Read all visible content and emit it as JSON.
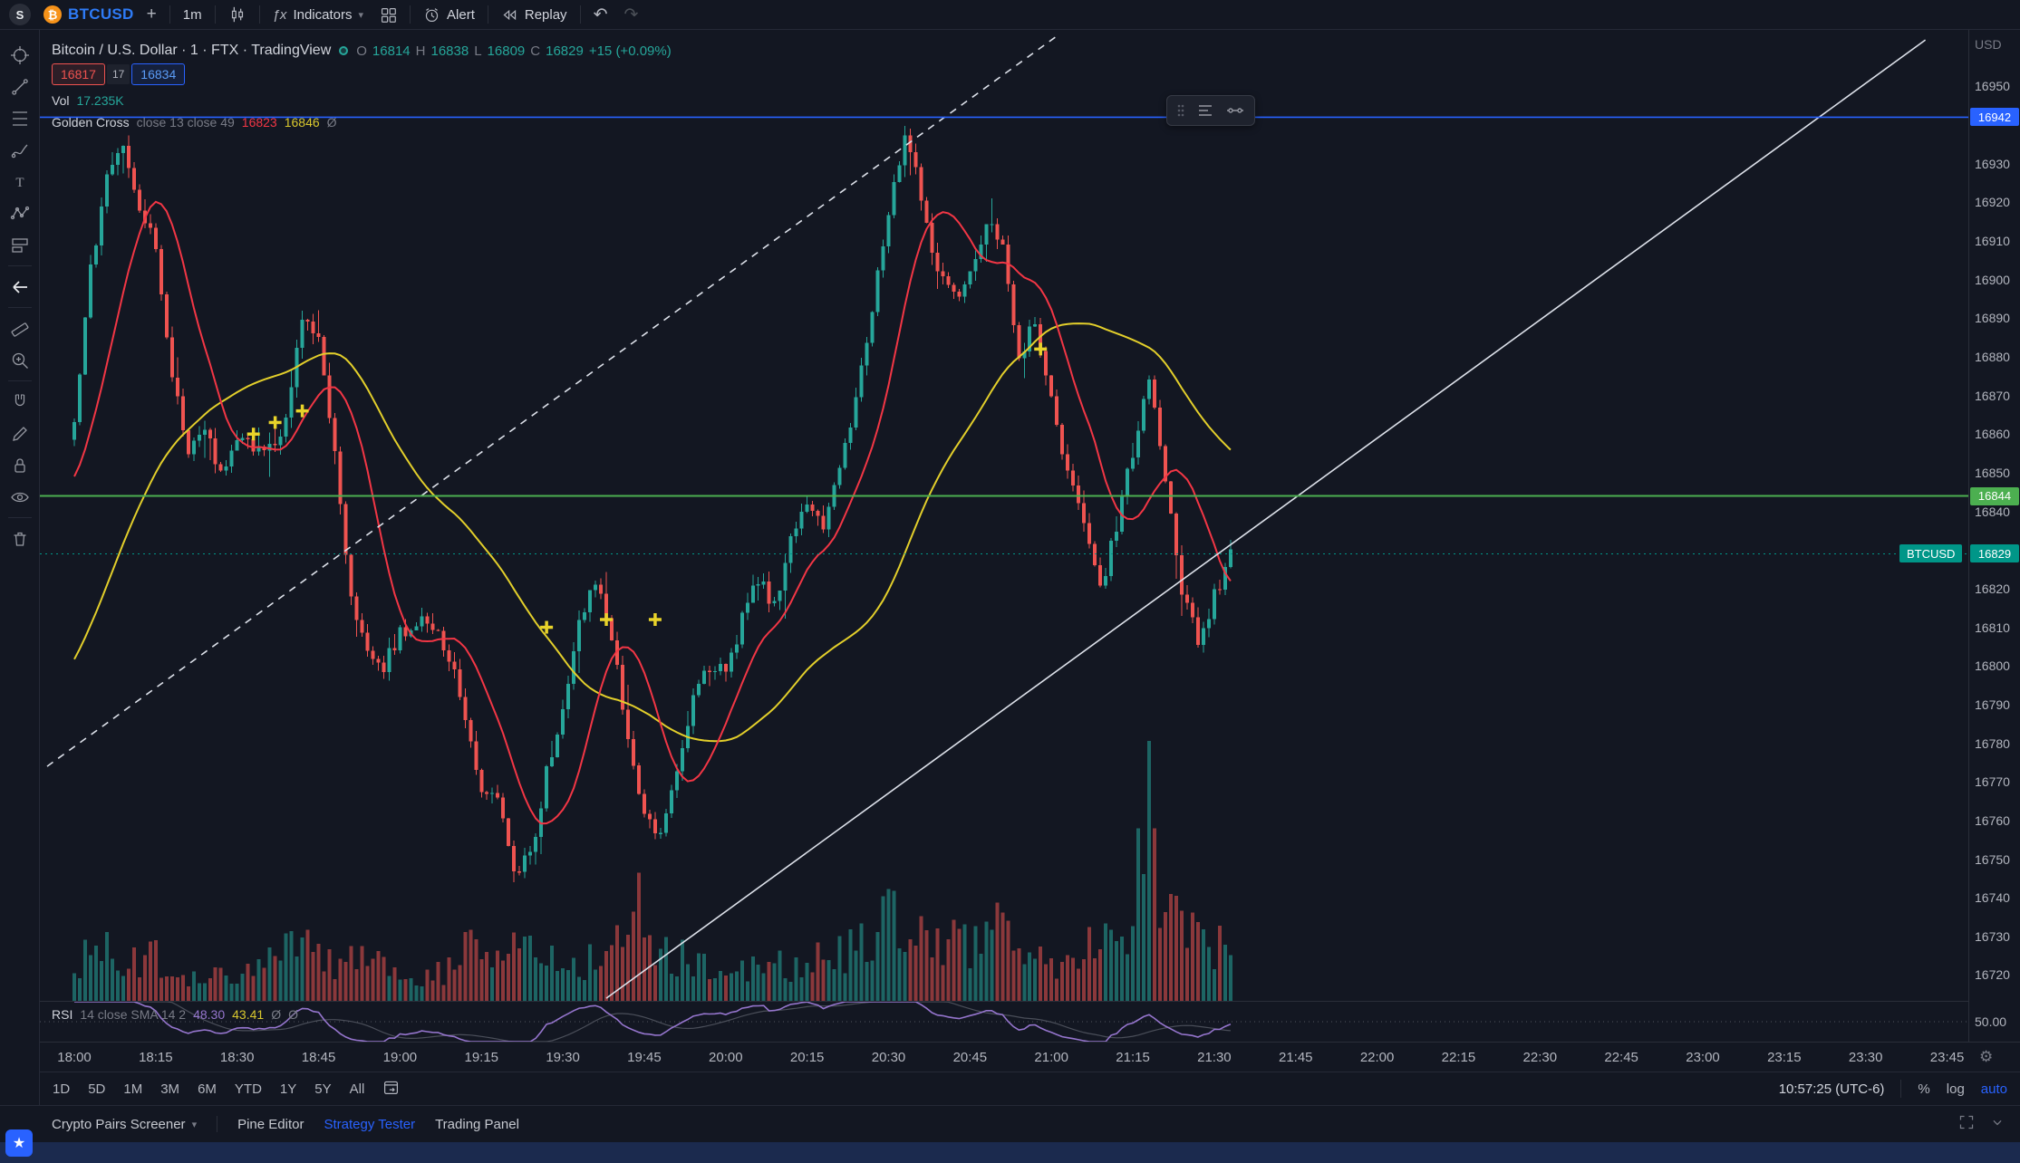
{
  "topbar": {
    "avatar_letter": "S",
    "symbol": "BTCUSD",
    "interval": "1m",
    "indicators_label": "Indicators",
    "alert_label": "Alert",
    "replay_label": "Replay"
  },
  "icons": {
    "plus": "+",
    "chevron_down": "▾",
    "undo": "↶",
    "redo": "↷",
    "gear": "⚙",
    "star": "★",
    "fx": "ƒx",
    "slash": "Ø"
  },
  "trade_buttons": {
    "sell": "16817",
    "spread": "17",
    "buy": "16834"
  },
  "legend": {
    "title": "Bitcoin / U.S. Dollar · 1 · FTX · TradingView",
    "ohlc": {
      "o_key": "O",
      "o": "16814",
      "h_key": "H",
      "h": "16838",
      "l_key": "L",
      "l": "16809",
      "c_key": "C",
      "c": "16829",
      "change": "+15 (+0.09%)"
    },
    "volume_label": "Vol",
    "volume_value": "17.235K",
    "indicator": {
      "name": "Golden Cross",
      "params": "close 13 close 49",
      "v1": "16823",
      "v2": "16846"
    }
  },
  "rsi_legend": {
    "name": "RSI",
    "params": "14 close SMA 14 2",
    "v1": "48.30",
    "v2": "43.41"
  },
  "time_axis": [
    "18:00",
    "18:15",
    "18:30",
    "18:45",
    "19:00",
    "19:15",
    "19:30",
    "19:45",
    "20:00",
    "20:15",
    "20:30",
    "20:45",
    "21:00",
    "21:15",
    "21:30",
    "21:45",
    "22:00",
    "22:15",
    "22:30",
    "22:45",
    "23:00",
    "23:15",
    "23:30",
    "23:45"
  ],
  "price_axis": {
    "currency": "USD",
    "rsi_tick": "50.00",
    "ticks": [
      16950,
      16930,
      16920,
      16910,
      16900,
      16890,
      16880,
      16870,
      16860,
      16850,
      16840,
      16820,
      16810,
      16800,
      16790,
      16780,
      16770,
      16760,
      16750,
      16740,
      16730,
      16720
    ],
    "tags": [
      {
        "price": 16942,
        "value": "16942",
        "color": "#2962ff"
      },
      {
        "price": 16844,
        "value": "16844",
        "color": "#4caf50"
      },
      {
        "price": 16829,
        "value": "16829",
        "color": "#009688"
      }
    ],
    "symbol_tag": "BTCUSD"
  },
  "bottom_toolbar": {
    "ranges": [
      "1D",
      "5D",
      "1M",
      "3M",
      "6M",
      "YTD",
      "1Y",
      "5Y",
      "All"
    ],
    "clock": "10:57:25 (UTC-6)",
    "percent": "%",
    "log_label": "log",
    "auto_label": "auto"
  },
  "bottom_panel": {
    "tabs": [
      {
        "label": "Crypto Pairs Screener"
      },
      {
        "label": "Pine Editor"
      },
      {
        "label": "Strategy Tester"
      },
      {
        "label": "Trading Panel"
      }
    ]
  },
  "chart_data": {
    "type": "candlestick",
    "symbol": "BTCUSD",
    "interval_minutes": 1,
    "visible_time_range": [
      "18:00",
      "23:45"
    ],
    "data_time_range": [
      "18:00",
      "21:33"
    ],
    "price_axis_range": [
      16715,
      16965
    ],
    "last_price": 16829,
    "current_bar": {
      "open": 16814,
      "high": 16838,
      "low": 16809,
      "close": 16829,
      "change": "+15 (+0.09%)"
    },
    "colors": {
      "up": "#26a69a",
      "down": "#ef5350",
      "volume_up": "rgba(38,166,154,0.55)",
      "volume_down": "rgba(239,83,80,0.55)",
      "marker": "#e8d32a",
      "trendline": "#dde1ea",
      "last_price_line": "#009688"
    },
    "ma_fast": {
      "type": "SMA",
      "length": 13,
      "color": "#f23645",
      "legend_value": 16823
    },
    "ma_slow": {
      "type": "SMA",
      "length": 49,
      "color": "#e3cf2b",
      "legend_value": 16846
    },
    "rsi": {
      "length": 14,
      "color": "#9575cd",
      "level": 50,
      "value": 48.3,
      "signal": 43.41
    },
    "pre_anchors": [
      [
        -49,
        16740
      ],
      [
        -36,
        16768
      ],
      [
        -24,
        16800
      ],
      [
        -12,
        16836
      ],
      [
        -3,
        16855
      ]
    ],
    "close_anchors": [
      [
        0,
        16862
      ],
      [
        3,
        16902
      ],
      [
        6,
        16928
      ],
      [
        9,
        16933
      ],
      [
        12,
        16918
      ],
      [
        15,
        16908
      ],
      [
        18,
        16875
      ],
      [
        21,
        16856
      ],
      [
        24,
        16862
      ],
      [
        27,
        16850
      ],
      [
        30,
        16858
      ],
      [
        33,
        16857
      ],
      [
        36,
        16856
      ],
      [
        39,
        16864
      ],
      [
        42,
        16889
      ],
      [
        45,
        16885
      ],
      [
        48,
        16855
      ],
      [
        51,
        16818
      ],
      [
        54,
        16804
      ],
      [
        57,
        16800
      ],
      [
        60,
        16808
      ],
      [
        63,
        16812
      ],
      [
        66,
        16810
      ],
      [
        69,
        16802
      ],
      [
        72,
        16788
      ],
      [
        75,
        16768
      ],
      [
        78,
        16765
      ],
      [
        81,
        16748
      ],
      [
        84,
        16750
      ],
      [
        87,
        16772
      ],
      [
        90,
        16790
      ],
      [
        93,
        16812
      ],
      [
        96,
        16822
      ],
      [
        99,
        16808
      ],
      [
        102,
        16782
      ],
      [
        105,
        16760
      ],
      [
        108,
        16756
      ],
      [
        111,
        16774
      ],
      [
        114,
        16792
      ],
      [
        117,
        16800
      ],
      [
        120,
        16798
      ],
      [
        123,
        16812
      ],
      [
        126,
        16822
      ],
      [
        129,
        16816
      ],
      [
        132,
        16832
      ],
      [
        135,
        16842
      ],
      [
        138,
        16836
      ],
      [
        141,
        16852
      ],
      [
        144,
        16868
      ],
      [
        147,
        16892
      ],
      [
        150,
        16918
      ],
      [
        153,
        16938
      ],
      [
        156,
        16922
      ],
      [
        159,
        16902
      ],
      [
        162,
        16896
      ],
      [
        165,
        16900
      ],
      [
        168,
        16915
      ],
      [
        171,
        16908
      ],
      [
        174,
        16878
      ],
      [
        177,
        16890
      ],
      [
        180,
        16868
      ],
      [
        183,
        16850
      ],
      [
        186,
        16838
      ],
      [
        189,
        16820
      ],
      [
        192,
        16836
      ],
      [
        195,
        16856
      ],
      [
        198,
        16876
      ],
      [
        201,
        16846
      ],
      [
        204,
        16820
      ],
      [
        207,
        16806
      ],
      [
        210,
        16818
      ],
      [
        213,
        16829
      ]
    ],
    "volume_anchors": [
      [
        0,
        40
      ],
      [
        4,
        80
      ],
      [
        8,
        45
      ],
      [
        14,
        60
      ],
      [
        20,
        32
      ],
      [
        30,
        28
      ],
      [
        42,
        70
      ],
      [
        46,
        45
      ],
      [
        52,
        60
      ],
      [
        58,
        35
      ],
      [
        66,
        28
      ],
      [
        72,
        62
      ],
      [
        78,
        72
      ],
      [
        84,
        68
      ],
      [
        90,
        45
      ],
      [
        96,
        50
      ],
      [
        101,
        70
      ],
      [
        104,
        125
      ],
      [
        108,
        70
      ],
      [
        114,
        45
      ],
      [
        120,
        32
      ],
      [
        126,
        42
      ],
      [
        134,
        48
      ],
      [
        141,
        58
      ],
      [
        147,
        88
      ],
      [
        153,
        105
      ],
      [
        158,
        85
      ],
      [
        164,
        72
      ],
      [
        170,
        88
      ],
      [
        176,
        60
      ],
      [
        182,
        52
      ],
      [
        188,
        68
      ],
      [
        194,
        62
      ],
      [
        198,
        235
      ],
      [
        202,
        95
      ],
      [
        207,
        80
      ],
      [
        213,
        60
      ]
    ],
    "golden_cross_markers": [
      [
        33,
        16860
      ],
      [
        37,
        16863
      ],
      [
        42,
        16866
      ],
      [
        87,
        16810
      ],
      [
        98,
        16812
      ],
      [
        107,
        16812
      ],
      [
        178,
        16882
      ]
    ],
    "trendlines": [
      {
        "style": "dashed",
        "points": [
          [
            -5,
            16774
          ],
          [
            181,
            16963
          ]
        ]
      },
      {
        "style": "solid",
        "points": [
          [
            98,
            16714
          ],
          [
            341,
            16962
          ]
        ]
      }
    ],
    "horizontal_lines": [
      {
        "price": 16942,
        "color": "#2962ff",
        "width": 1.6
      },
      {
        "price": 16844,
        "color": "#4caf50",
        "width": 2
      }
    ]
  }
}
